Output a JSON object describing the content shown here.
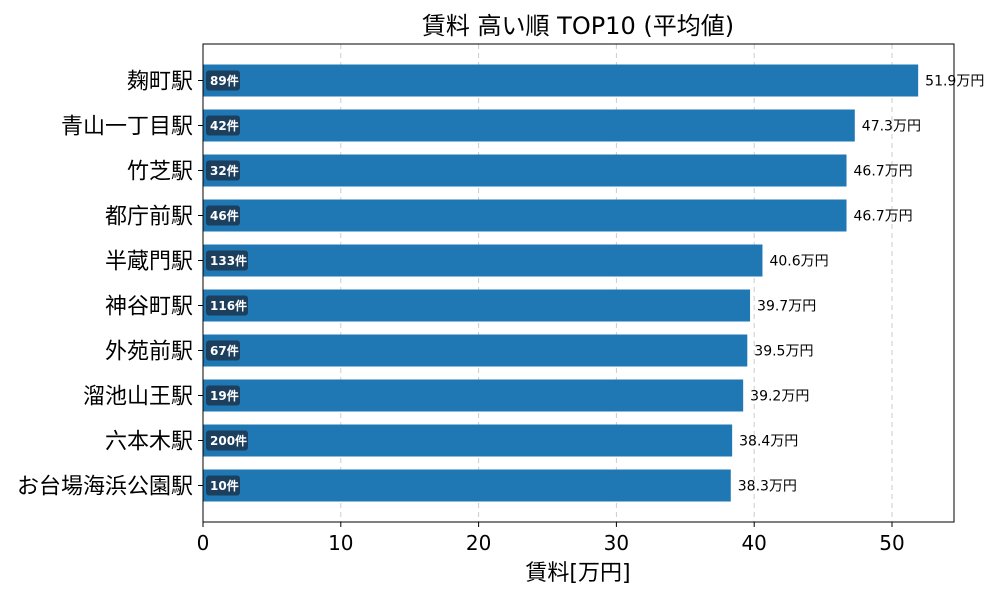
{
  "chart_data": {
    "type": "bar",
    "orientation": "horizontal",
    "title": "賃料 高い順 TOP10 (平均値)",
    "xlabel": "賃料[万円]",
    "ylabel": "",
    "xlim": [
      0,
      54.5
    ],
    "xticks": [
      0,
      10,
      20,
      30,
      40,
      50
    ],
    "grid": "x-dashed",
    "categories": [
      "麹町駅",
      "青山一丁目駅",
      "竹芝駅",
      "都庁前駅",
      "半蔵門駅",
      "神谷町駅",
      "外苑前駅",
      "溜池山王駅",
      "六本木駅",
      "お台場海浜公園駅"
    ],
    "values": [
      51.9,
      47.3,
      46.7,
      46.7,
      40.6,
      39.7,
      39.5,
      39.2,
      38.4,
      38.3
    ],
    "value_labels": [
      "51.9万円",
      "47.3万円",
      "46.7万円",
      "46.7万円",
      "40.6万円",
      "39.7万円",
      "39.5万円",
      "39.2万円",
      "38.4万円",
      "38.3万円"
    ],
    "counts": [
      "89件",
      "42件",
      "32件",
      "46件",
      "133件",
      "116件",
      "67件",
      "19件",
      "200件",
      "10件"
    ],
    "colors": {
      "bar": "#1f77b4",
      "badge": "#1c3f5e",
      "grid": "#cccccc"
    }
  }
}
